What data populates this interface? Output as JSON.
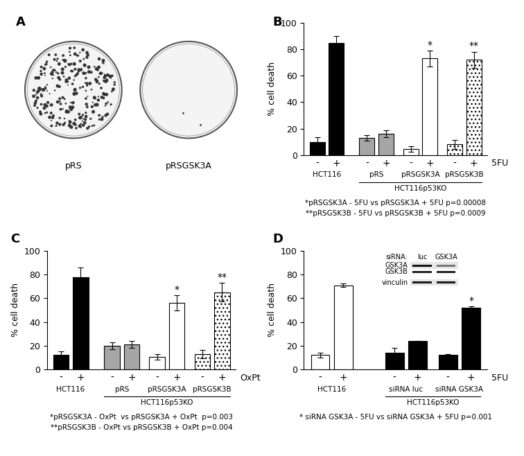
{
  "chart_data": [
    {
      "type": "image",
      "title": "A",
      "labels": [
        "pRS",
        "pRSGSK3A"
      ]
    },
    {
      "type": "bar",
      "title": "B",
      "categories": [
        "-",
        "+",
        "-",
        "+",
        "-",
        "+",
        "-",
        "+"
      ],
      "groups": [
        "HCT116",
        "pRS",
        "pRSGSK3A",
        "pRSGSK3B"
      ],
      "group_label": "HCT116p53KO",
      "labelled_groups": [
        "pRS",
        "pRSGSK3A",
        "pRSGSK3B"
      ],
      "treatment": "5FU",
      "values": [
        10,
        85,
        13,
        16,
        4.5,
        73,
        8,
        72
      ],
      "errors": [
        3.5,
        5,
        2,
        2.5,
        2,
        6,
        3.5,
        6
      ],
      "colors": [
        "#000000",
        "#000000",
        "#a6a6a6",
        "#a6a6a6",
        "#ffffff",
        "#ffffff",
        "#ffffff",
        "#ffffff"
      ],
      "marks": [
        null,
        null,
        null,
        null,
        null,
        "*",
        null,
        "**"
      ],
      "y_label": "% cell death",
      "ylim": [
        0,
        100
      ],
      "yticks": [
        0,
        20,
        40,
        60,
        80,
        100
      ],
      "notes": [
        "*pRSGSK3A - 5FU vs pRSGSK3A + 5FU p=0.00008",
        "**pRSGSK3B - 5FU vs pRSGSK3B + 5FU p=0.0009"
      ]
    },
    {
      "type": "bar",
      "title": "C",
      "categories": [
        "-",
        "+",
        "-",
        "+",
        "-",
        "+",
        "-",
        "+"
      ],
      "groups": [
        "HCT116",
        "pRS",
        "pRSGSK3A",
        "pRSGSK3B"
      ],
      "group_label": "HCT116p53KO",
      "labelled_groups": [
        "pRS",
        "pRSGSK3A",
        "pRSGSK3B"
      ],
      "treatment": "OxPt",
      "values": [
        12,
        78,
        20,
        21,
        10.5,
        56,
        13,
        65
      ],
      "errors": [
        3,
        8,
        3,
        3,
        2.5,
        6.5,
        3.5,
        8
      ],
      "colors": [
        "#000000",
        "#000000",
        "#a6a6a6",
        "#a6a6a6",
        "#ffffff",
        "#ffffff",
        "#ffffff",
        "#ffffff"
      ],
      "marks": [
        null,
        null,
        null,
        null,
        null,
        "*",
        null,
        "**"
      ],
      "y_label": "% cell death",
      "ylim": [
        0,
        100
      ],
      "yticks": [
        0,
        20,
        40,
        60,
        80,
        100
      ],
      "notes": [
        "*pRSGSK3A - OxPt  vs pRSGSK3A + OxPt  p=0.003",
        "**pRSGSK3B - OxPt vs pRSGSK3B + OxPt p=0.004"
      ]
    },
    {
      "type": "bar",
      "title": "D",
      "categories": [
        "-",
        "+",
        "-",
        "+",
        "-",
        "+"
      ],
      "groups": [
        "HCT116",
        "siRNA luc",
        "siRNA GSK3A"
      ],
      "group_label": "HCT116p53KO",
      "labelled_groups": [
        "siRNA luc",
        "siRNA GSK3A"
      ],
      "treatment": "5FU",
      "values": [
        12,
        71,
        14,
        24,
        12.5,
        52
      ],
      "errors": [
        2,
        1.5,
        4,
        0,
        0.5,
        1
      ],
      "colors": [
        "#ffffff",
        "#ffffff",
        "#000000",
        "#000000",
        "#000000",
        "#000000"
      ],
      "marks": [
        null,
        null,
        null,
        null,
        null,
        "*"
      ],
      "y_label": "% cell death",
      "ylim": [
        0,
        100
      ],
      "yticks": [
        0,
        20,
        40,
        60,
        80,
        100
      ],
      "notes": [
        "* siRNA GSK3A - 5FU vs siRNA GSK3A + 5FU p=0.001"
      ],
      "blot": {
        "label": "siRNA:",
        "lanes": [
          "luc",
          "GSK3A"
        ],
        "rows": [
          "GSK3A",
          "GSK3B",
          "vinculin"
        ]
      }
    }
  ]
}
